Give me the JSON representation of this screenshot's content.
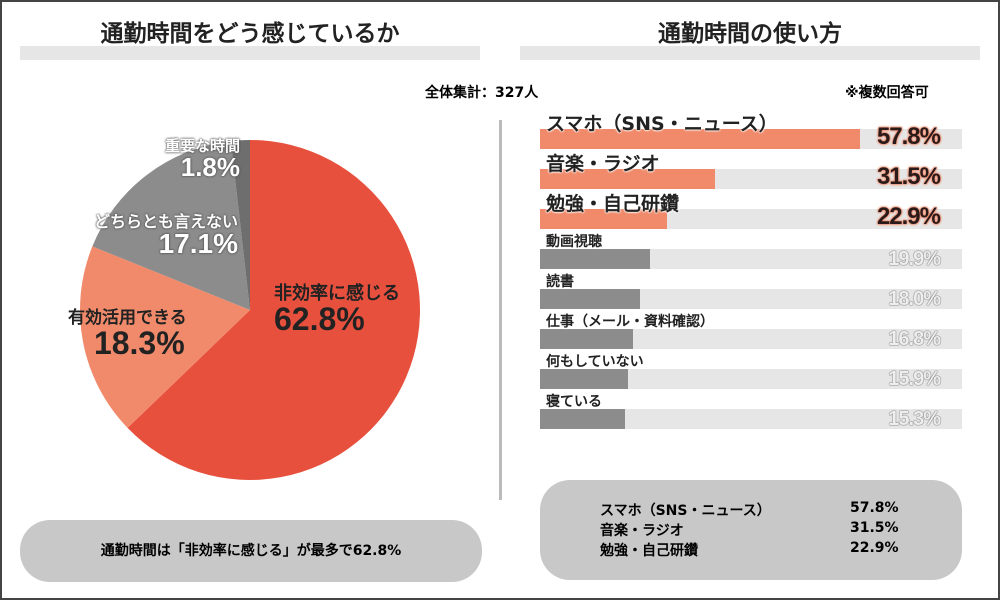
{
  "left_title": "通勤時間をどう感じているか",
  "right_title": "通勤時間の使い方",
  "total": "全体集計：327人",
  "multi_note": "※複数回答可",
  "colors": {
    "red": "#e8503e",
    "salmon": "#f08a6a",
    "gray": "#8c8c8c",
    "dark_gray": "#6e6e6e",
    "bar_gray": "#8c8c8c",
    "track": "#e6e6e6"
  },
  "chart_data": [
    {
      "type": "pie",
      "title": "通勤時間をどう感じているか",
      "slices": [
        {
          "label": "非効率に感じる",
          "value": 62.8,
          "display": "62.8%",
          "color": "#e8503e"
        },
        {
          "label": "有効活用できる",
          "value": 18.3,
          "display": "18.3%",
          "color": "#f08a6a"
        },
        {
          "label": "どちらとも言えない",
          "value": 17.1,
          "display": "17.1%",
          "color": "#8c8c8c"
        },
        {
          "label": "重要な時間",
          "value": 1.8,
          "display": "1.8%",
          "color": "#6e6e6e"
        }
      ]
    },
    {
      "type": "bar",
      "orientation": "horizontal",
      "title": "通勤時間の使い方",
      "categories": [
        "スマホ（SNS・ニュース）",
        "音楽・ラジオ",
        "勉強・自己研鑽",
        "動画視聴",
        "読書",
        "仕事（メール・資料確認）",
        "何もしていない",
        "寝ている"
      ],
      "values": [
        57.8,
        31.5,
        22.9,
        19.9,
        18.0,
        16.8,
        15.9,
        15.3
      ],
      "display": [
        "57.8%",
        "31.5%",
        "22.9%",
        "19.9%",
        "18.0%",
        "16.8%",
        "15.9%",
        "15.3%"
      ],
      "highlight_top": 3
    }
  ],
  "summary_left": "通勤時間は「非効率に感じる」が最多で62.8%",
  "summary_right": [
    {
      "label": "スマホ（SNS・ニュース）",
      "value": "57.8%"
    },
    {
      "label": "音楽・ラジオ",
      "value": "31.5%"
    },
    {
      "label": "勉強・自己研鑽",
      "value": "22.9%"
    }
  ]
}
